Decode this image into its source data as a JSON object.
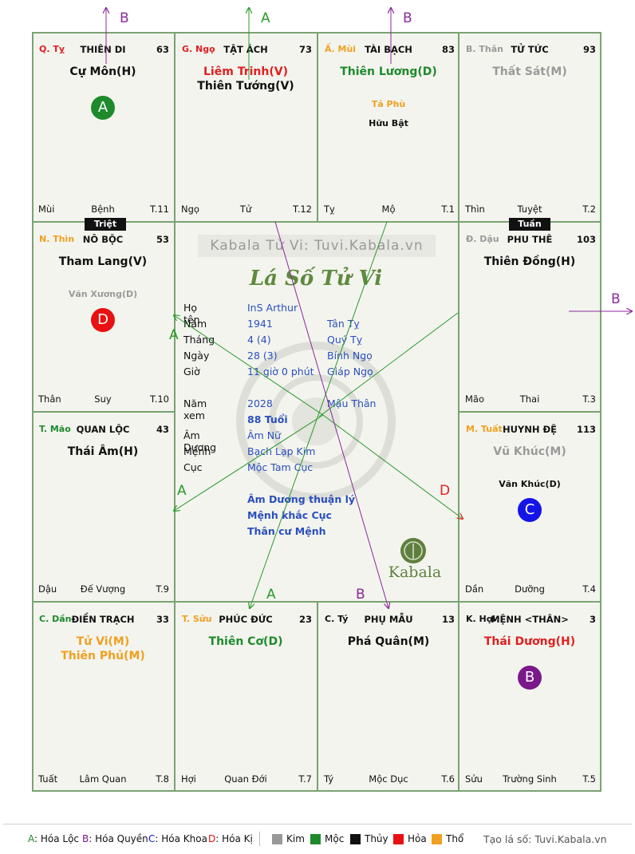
{
  "cells": [
    {
      "id": "ty",
      "can": "Q. Tỵ",
      "can_color": "#e02020",
      "palace": "THIÊN DI",
      "num": "63",
      "stars": [
        {
          "text": "Cự Môn(H)",
          "color": "#111111"
        }
      ],
      "minors": [],
      "foot": [
        "Mùi",
        "Bệnh",
        "T.11"
      ],
      "badge": {
        "letter": "A",
        "color": "#1e8a2c"
      }
    },
    {
      "id": "ngo",
      "can": "G. Ngọ",
      "can_color": "#e02020",
      "palace": "TẬT ÁCH",
      "num": "73",
      "stars": [
        {
          "text": "Liêm Trinh(V)",
          "color": "#e02020"
        },
        {
          "text": "Thiên Tướng(V)",
          "color": "#111111"
        }
      ],
      "minors": [],
      "foot": [
        "Ngọ",
        "Tử",
        "T.12"
      ]
    },
    {
      "id": "mui",
      "can": "Ấ. Mùi",
      "can_color": "#f0a020",
      "palace": "TÀI BẠCH",
      "num": "83",
      "stars": [
        {
          "text": "Thiên Lương(D)",
          "color": "#1e8a2c"
        }
      ],
      "minors": [
        {
          "text": "Tả Phù",
          "color": "#f0a020"
        },
        {
          "text": "Hữu Bật",
          "color": "#111111"
        }
      ],
      "foot": [
        "Tỵ",
        "Mộ",
        "T.1"
      ]
    },
    {
      "id": "than",
      "can": "B. Thân",
      "can_color": "#9a9a9a",
      "palace": "TỬ TỨC",
      "num": "93",
      "stars": [
        {
          "text": "Thất Sát(M)",
          "color": "#9a9a9a"
        }
      ],
      "minors": [],
      "foot": [
        "Thìn",
        "Tuyệt",
        "T.2"
      ]
    },
    {
      "id": "thin",
      "can": "N. Thìn",
      "can_color": "#f0a020",
      "palace": "NÔ BỘC",
      "num": "53",
      "stars": [
        {
          "text": "Tham Lang(V)",
          "color": "#111111"
        }
      ],
      "minors": [
        {
          "text": "Văn Xương(D)",
          "color": "#9a9a9a"
        }
      ],
      "foot": [
        "Thân",
        "Suy",
        "T.10"
      ],
      "badge": {
        "letter": "D",
        "color": "#e81010"
      }
    },
    {
      "id": "dau",
      "can": "Đ. Dậu",
      "can_color": "#9a9a9a",
      "palace": "PHU THÊ",
      "num": "103",
      "stars": [
        {
          "text": "Thiên Đồng(H)",
          "color": "#111111"
        }
      ],
      "minors": [],
      "foot": [
        "Mão",
        "Thai",
        "T.3"
      ]
    },
    {
      "id": "mao",
      "can": "T. Mão",
      "can_color": "#1e8a2c",
      "palace": "QUAN LỘC",
      "num": "43",
      "stars": [
        {
          "text": "Thái Âm(H)",
          "color": "#111111"
        }
      ],
      "minors": [],
      "foot": [
        "Dậu",
        "Đế Vượng",
        "T.9"
      ]
    },
    {
      "id": "tuat",
      "can": "M. Tuất",
      "can_color": "#f0a020",
      "palace": "HUYNH ĐỆ",
      "num": "113",
      "stars": [
        {
          "text": "Vũ Khúc(M)",
          "color": "#9a9a9a"
        }
      ],
      "minors": [
        {
          "text": "Văn Khúc(D)",
          "color": "#111111"
        }
      ],
      "foot": [
        "Dần",
        "Dưỡng",
        "T.4"
      ],
      "badge": {
        "letter": "C",
        "color": "#1414e8"
      }
    },
    {
      "id": "dan",
      "can": "C. Dần",
      "can_color": "#1e8a2c",
      "palace": "ĐIỀN TRẠCH",
      "num": "33",
      "stars": [
        {
          "text": "Tử Vi(M)",
          "color": "#f0a020"
        },
        {
          "text": "Thiên Phủ(M)",
          "color": "#f0a020"
        }
      ],
      "minors": [],
      "foot": [
        "Tuất",
        "Lâm Quan",
        "T.8"
      ]
    },
    {
      "id": "suu",
      "can": "T. Sửu",
      "can_color": "#f0a020",
      "palace": "PHÚC ĐỨC",
      "num": "23",
      "stars": [
        {
          "text": "Thiên Cơ(D)",
          "color": "#1e8a2c"
        }
      ],
      "minors": [],
      "foot": [
        "Hợi",
        "Quan Đới",
        "T.7"
      ]
    },
    {
      "id": "tyy",
      "can": "C. Tý",
      "can_color": "#111111",
      "palace": "PHỤ MẪU",
      "num": "13",
      "stars": [
        {
          "text": "Phá Quân(M)",
          "color": "#111111"
        }
      ],
      "minors": [],
      "foot": [
        "Tý",
        "Mộc Dục",
        "T.6"
      ]
    },
    {
      "id": "hoi",
      "can": "K. Hợi",
      "can_color": "#111111",
      "palace": "MỆNH <THÂN>",
      "num": "3",
      "stars": [
        {
          "text": "Thái Dương(H)",
          "color": "#e02020"
        }
      ],
      "minors": [],
      "foot": [
        "Sửu",
        "Trường Sinh",
        "T.5"
      ],
      "badge": {
        "letter": "B",
        "color": "#7a1a8a"
      }
    }
  ],
  "tags": {
    "triet": "Triệt",
    "tuan": "Tuần"
  },
  "center": {
    "brand": "Kabala Tử Vi: Tuvi.Kabala.vn",
    "script_title": "Lá Số Tử Vi",
    "rows": [
      {
        "k": "Họ tên",
        "v1": "InS Arthur",
        "v2": ""
      },
      {
        "k": "Năm",
        "v1": "1941",
        "v2": "Tân Tỵ"
      },
      {
        "k": "Tháng",
        "v1": "4  (4)",
        "v2": "Quý Tỵ"
      },
      {
        "k": "Ngày",
        "v1": "28  (3)",
        "v2": "Bính Ngọ"
      },
      {
        "k": "Giờ",
        "v1": "11 giờ 0 phút",
        "v2": "Giáp Ngọ"
      },
      {
        "k": "Năm xem",
        "v1": "2028",
        "v2": "Mậu Thân"
      },
      {
        "k": "",
        "v1": "88 Tuổi",
        "v2": ""
      },
      {
        "k": "Âm Dương",
        "v1": "Âm Nữ",
        "v2": ""
      },
      {
        "k": "Mệnh",
        "v1": "Bạch Lạp Kim",
        "v2": ""
      },
      {
        "k": "Cục",
        "v1": "Mộc Tam Cục",
        "v2": ""
      }
    ],
    "notes": [
      "Âm Dương thuận lý",
      "Mệnh khắc Cục",
      "Thân cư Mệnh"
    ],
    "logo_text": "Kabala"
  },
  "arrow_labels": {
    "top_left": "B",
    "top_mid": "A",
    "top_right": "B",
    "right": "B"
  },
  "line_labels": {
    "a1": "A",
    "a2": "A",
    "a3": "A",
    "d": "D",
    "b": "B"
  },
  "legend": {
    "hoa": [
      {
        "key": "A",
        "text": ": Hóa Lộc",
        "color": "#1e8a2c"
      },
      {
        "key": "B",
        "text": ": Hóa Quyền",
        "color": "#7a1a8a"
      },
      {
        "key": "C",
        "text": ": Hóa Khoa",
        "color": "#1414e8"
      },
      {
        "key": "D",
        "text": ": Hóa Kị",
        "color": "#e81010"
      }
    ],
    "elements": [
      {
        "name": "Kim",
        "color": "#999999"
      },
      {
        "name": "Mộc",
        "color": "#1e8a2c"
      },
      {
        "name": "Thủy",
        "color": "#111111"
      },
      {
        "name": "Hỏa",
        "color": "#e81010"
      },
      {
        "name": "Thổ",
        "color": "#f0a020"
      }
    ],
    "credit": "Tạo lá số: Tuvi.Kabala.vn"
  }
}
